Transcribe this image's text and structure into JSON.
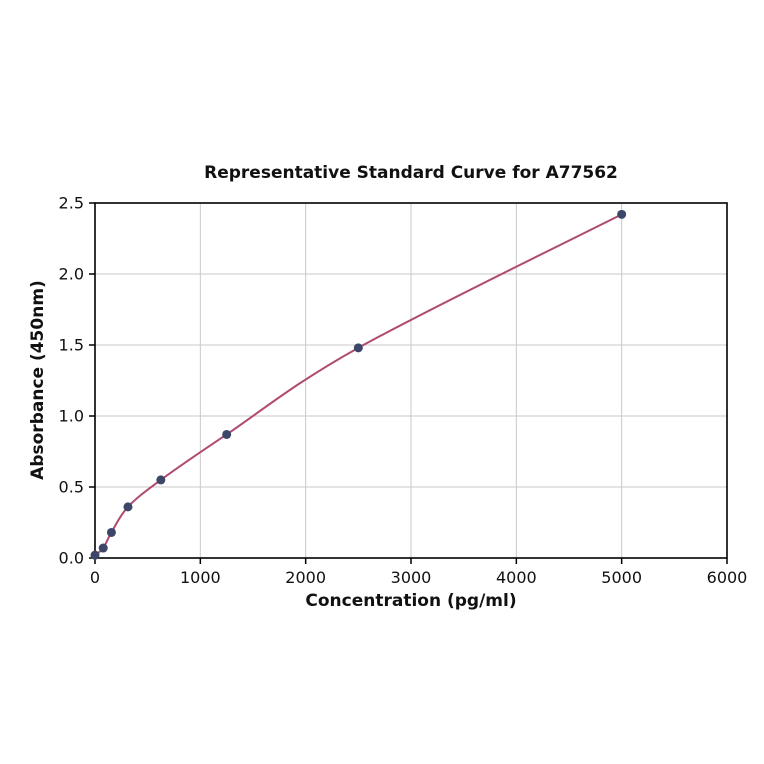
{
  "chart_data": {
    "type": "line",
    "title": "Representative Standard Curve for A77562",
    "xlabel": "Concentration (pg/ml)",
    "ylabel": "Absorbance (450nm)",
    "xlim": [
      0,
      6000
    ],
    "ylim": [
      0,
      2.5
    ],
    "x_ticks": [
      0,
      1000,
      2000,
      3000,
      4000,
      5000,
      6000
    ],
    "x_tick_labels": [
      "0",
      "1000",
      "2000",
      "3000",
      "4000",
      "5000",
      "6000"
    ],
    "y_ticks": [
      0,
      0.5,
      1.0,
      1.5,
      2.0,
      2.5
    ],
    "y_tick_labels": [
      "0.0",
      "0.5",
      "1.0",
      "1.5",
      "2.0",
      "2.5"
    ],
    "grid": true,
    "legend": "none",
    "series": [
      {
        "name": "standard-curve",
        "x": [
          0,
          78,
          156,
          313,
          625,
          1250,
          2500,
          5000
        ],
        "y": [
          0.02,
          0.07,
          0.18,
          0.36,
          0.55,
          0.87,
          1.48,
          2.42
        ]
      }
    ],
    "colors": {
      "line": "#b04a70",
      "point": "#3b4668",
      "grid": "#c9c9c9",
      "axis": "#000000",
      "text": "#111111",
      "background": "#ffffff"
    }
  }
}
